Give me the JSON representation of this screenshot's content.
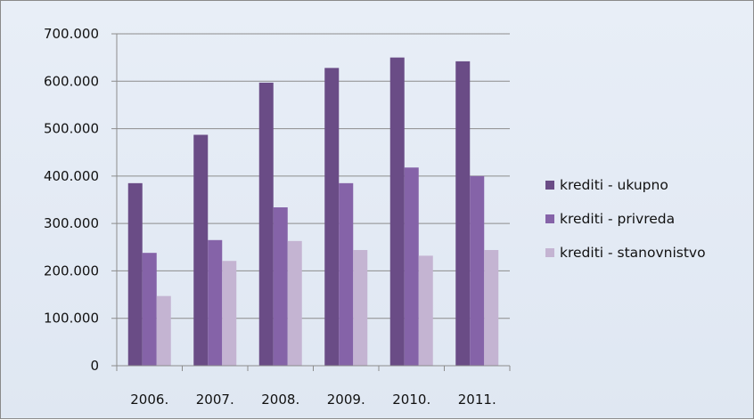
{
  "chart_data": {
    "type": "bar",
    "categories": [
      "2006.",
      "2007.",
      "2008.",
      "2009.",
      "2010.",
      "2011."
    ],
    "series": [
      {
        "name": "krediti - ukupno",
        "color": "#6a4c86",
        "values": [
          385000,
          487000,
          597000,
          628000,
          650000,
          642000
        ]
      },
      {
        "name": "krediti - privreda",
        "color": "#8563a8",
        "values": [
          238000,
          265000,
          334000,
          385000,
          418000,
          400000
        ]
      },
      {
        "name": "krediti - stanovnistvo",
        "color": "#c4b4d2",
        "values": [
          147000,
          221000,
          263000,
          244000,
          232000,
          244000
        ]
      }
    ],
    "ylim": [
      0,
      700000
    ],
    "yticks": [
      0,
      100000,
      200000,
      300000,
      400000,
      500000,
      600000,
      700000
    ],
    "ytick_labels": [
      "0",
      "100.000",
      "200.000",
      "300.000",
      "400.000",
      "500.000",
      "600.000",
      "700.000"
    ],
    "grid": true,
    "legend_position": "right",
    "title": "",
    "xlabel": "",
    "ylabel": ""
  }
}
